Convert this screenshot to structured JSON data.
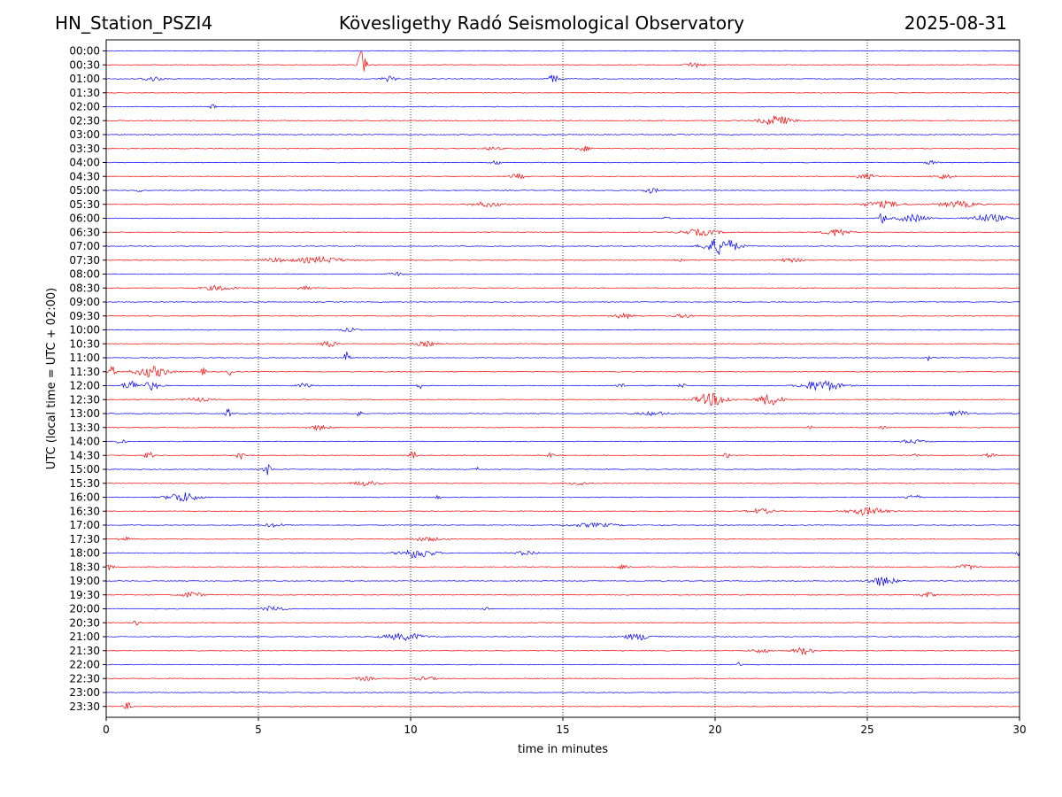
{
  "header": {
    "station": "HN_Station_PSZI4",
    "observatory": "Kövesligethy Radó Seismological Observatory",
    "date": "2025-08-31"
  },
  "chart_data": {
    "type": "line",
    "title": "Kövesligethy Radó Seismological Observatory",
    "xlabel": "time in minutes",
    "ylabel": "UTC (local time = UTC + 02:00)",
    "xlim": [
      0,
      30
    ],
    "x_ticks": [
      0,
      5,
      10,
      15,
      20,
      25,
      30
    ],
    "vertical_grid": true,
    "grid_style": "dotted",
    "colors": {
      "even_rows": "#0000ff",
      "odd_rows": "#ff0000"
    },
    "rows": [
      {
        "label": "00:00",
        "events": []
      },
      {
        "label": "00:30",
        "events": [
          [
            8.4,
            2.6,
            0.3
          ],
          [
            19.3,
            0.5,
            0.6
          ]
        ]
      },
      {
        "label": "01:00",
        "events": [
          [
            1.5,
            0.4,
            0.8
          ],
          [
            9.3,
            0.4,
            0.6
          ],
          [
            14.7,
            0.6,
            0.5
          ]
        ]
      },
      {
        "label": "01:30",
        "events": []
      },
      {
        "label": "02:00",
        "events": [
          [
            3.5,
            0.5,
            0.2
          ]
        ]
      },
      {
        "label": "02:30",
        "events": [
          [
            22.0,
            0.8,
            1.2
          ]
        ]
      },
      {
        "label": "03:00",
        "events": []
      },
      {
        "label": "03:30",
        "events": [
          [
            15.7,
            0.4,
            0.6
          ],
          [
            12.7,
            0.3,
            0.6
          ]
        ]
      },
      {
        "label": "04:00",
        "events": [
          [
            12.8,
            0.5,
            0.3
          ],
          [
            27.1,
            0.3,
            0.5
          ]
        ]
      },
      {
        "label": "04:30",
        "events": [
          [
            13.5,
            0.4,
            0.6
          ],
          [
            25.0,
            0.4,
            0.8
          ],
          [
            27.5,
            0.4,
            0.8
          ]
        ]
      },
      {
        "label": "05:00",
        "events": [
          [
            1.1,
            0.4,
            0.2
          ],
          [
            17.9,
            0.4,
            0.6
          ]
        ]
      },
      {
        "label": "05:30",
        "events": [
          [
            12.5,
            0.4,
            1.2
          ],
          [
            25.5,
            0.5,
            1.5
          ],
          [
            28.0,
            0.5,
            1.5
          ]
        ]
      },
      {
        "label": "06:00",
        "events": [
          [
            25.5,
            0.9,
            0.3
          ],
          [
            26.5,
            0.6,
            1.2
          ],
          [
            29.0,
            0.6,
            1.5
          ],
          [
            18.4,
            0.4,
            0.2
          ]
        ]
      },
      {
        "label": "06:30",
        "events": [
          [
            19.5,
            0.5,
            1.5
          ],
          [
            24.0,
            0.6,
            1.0
          ]
        ]
      },
      {
        "label": "07:00",
        "events": [
          [
            20.2,
            1.4,
            1.3
          ]
        ]
      },
      {
        "label": "07:30",
        "events": [
          [
            7.0,
            0.5,
            2.0
          ],
          [
            5.5,
            0.3,
            1.0
          ],
          [
            22.5,
            0.3,
            1.0
          ],
          [
            18.8,
            0.3,
            0.3
          ]
        ]
      },
      {
        "label": "08:00",
        "events": [
          [
            9.5,
            0.3,
            0.6
          ]
        ]
      },
      {
        "label": "08:30",
        "events": [
          [
            3.7,
            0.4,
            1.2
          ],
          [
            6.5,
            0.3,
            0.6
          ]
        ]
      },
      {
        "label": "09:00",
        "events": []
      },
      {
        "label": "09:30",
        "events": [
          [
            17.0,
            0.4,
            0.8
          ],
          [
            19.0,
            0.3,
            0.8
          ]
        ]
      },
      {
        "label": "10:00",
        "events": [
          [
            8.0,
            0.3,
            0.6
          ]
        ]
      },
      {
        "label": "10:30",
        "events": [
          [
            7.3,
            0.6,
            0.6
          ],
          [
            10.5,
            0.4,
            0.8
          ]
        ]
      },
      {
        "label": "11:00",
        "events": [
          [
            7.9,
            1.2,
            0.2
          ],
          [
            27.0,
            0.5,
            0.2
          ]
        ]
      },
      {
        "label": "11:30",
        "events": [
          [
            0.2,
            0.8,
            0.3
          ],
          [
            1.5,
            0.9,
            1.3
          ],
          [
            4.1,
            0.6,
            0.3
          ],
          [
            3.2,
            0.6,
            0.2
          ]
        ]
      },
      {
        "label": "12:00",
        "events": [
          [
            0.8,
            0.8,
            0.6
          ],
          [
            1.5,
            0.7,
            0.6
          ],
          [
            6.5,
            0.4,
            0.6
          ],
          [
            10.3,
            0.5,
            0.2
          ],
          [
            16.9,
            0.6,
            0.3
          ],
          [
            23.5,
            0.9,
            1.5
          ],
          [
            18.9,
            0.4,
            0.3
          ]
        ]
      },
      {
        "label": "12:30",
        "events": [
          [
            19.9,
            1.0,
            1.3
          ],
          [
            21.8,
            0.9,
            1.0
          ],
          [
            3.0,
            0.3,
            1.0
          ]
        ]
      },
      {
        "label": "13:00",
        "events": [
          [
            4.0,
            0.8,
            0.2
          ],
          [
            8.3,
            0.6,
            0.2
          ],
          [
            28.0,
            0.5,
            0.8
          ],
          [
            18.0,
            0.3,
            1.2
          ]
        ]
      },
      {
        "label": "13:30",
        "events": [
          [
            7.0,
            0.4,
            0.8
          ],
          [
            23.1,
            0.5,
            0.2
          ],
          [
            25.5,
            0.4,
            0.2
          ]
        ]
      },
      {
        "label": "14:00",
        "events": [
          [
            0.5,
            0.6,
            0.3
          ],
          [
            26.5,
            0.3,
            1.0
          ]
        ]
      },
      {
        "label": "14:30",
        "events": [
          [
            1.4,
            0.7,
            0.3
          ],
          [
            4.4,
            0.7,
            0.3
          ],
          [
            10.1,
            0.7,
            0.3
          ],
          [
            14.6,
            0.6,
            0.2
          ],
          [
            20.4,
            0.4,
            0.3
          ],
          [
            26.6,
            0.4,
            0.2
          ],
          [
            29.0,
            0.3,
            0.6
          ]
        ]
      },
      {
        "label": "15:00",
        "events": [
          [
            5.3,
            0.9,
            0.3
          ],
          [
            12.2,
            0.3,
            0.2
          ]
        ]
      },
      {
        "label": "15:30",
        "events": [
          [
            8.5,
            0.4,
            1.0
          ],
          [
            15.5,
            0.3,
            0.6
          ]
        ]
      },
      {
        "label": "16:00",
        "events": [
          [
            2.5,
            0.8,
            1.2
          ],
          [
            26.5,
            0.4,
            0.6
          ],
          [
            10.9,
            0.3,
            0.2
          ]
        ]
      },
      {
        "label": "16:30",
        "events": [
          [
            21.5,
            0.4,
            1.0
          ],
          [
            25.0,
            0.6,
            1.5
          ]
        ]
      },
      {
        "label": "17:00",
        "events": [
          [
            16.0,
            0.3,
            2.0
          ],
          [
            5.5,
            0.3,
            0.8
          ]
        ]
      },
      {
        "label": "17:30",
        "events": [
          [
            0.6,
            0.3,
            0.6
          ],
          [
            10.5,
            0.3,
            1.2
          ]
        ]
      },
      {
        "label": "18:00",
        "events": [
          [
            10.2,
            0.8,
            1.3
          ],
          [
            13.8,
            0.4,
            0.8
          ],
          [
            30.0,
            0.4,
            0.3
          ]
        ]
      },
      {
        "label": "18:30",
        "events": [
          [
            0.1,
            0.6,
            0.3
          ],
          [
            17.0,
            0.4,
            0.5
          ],
          [
            28.3,
            0.4,
            0.8
          ]
        ]
      },
      {
        "label": "19:00",
        "events": [
          [
            25.5,
            0.8,
            1.0
          ]
        ]
      },
      {
        "label": "19:30",
        "events": [
          [
            2.8,
            0.5,
            0.8
          ],
          [
            27.0,
            0.4,
            0.6
          ]
        ]
      },
      {
        "label": "20:00",
        "events": [
          [
            5.5,
            0.5,
            0.8
          ],
          [
            12.5,
            0.2,
            0.3
          ]
        ]
      },
      {
        "label": "20:30",
        "events": [
          [
            1.0,
            0.5,
            0.3
          ]
        ]
      },
      {
        "label": "21:00",
        "events": [
          [
            9.8,
            0.6,
            1.6
          ],
          [
            17.5,
            0.5,
            1.3
          ]
        ]
      },
      {
        "label": "21:30",
        "events": [
          [
            22.9,
            0.6,
            0.8
          ],
          [
            21.5,
            0.3,
            0.8
          ]
        ]
      },
      {
        "label": "22:00",
        "events": [
          [
            20.8,
            0.4,
            0.2
          ]
        ]
      },
      {
        "label": "22:30",
        "events": [
          [
            8.5,
            0.3,
            0.8
          ],
          [
            10.5,
            0.3,
            0.8
          ]
        ]
      },
      {
        "label": "23:00",
        "events": []
      },
      {
        "label": "23:30",
        "events": [
          [
            0.7,
            0.6,
            0.3
          ]
        ]
      }
    ]
  }
}
